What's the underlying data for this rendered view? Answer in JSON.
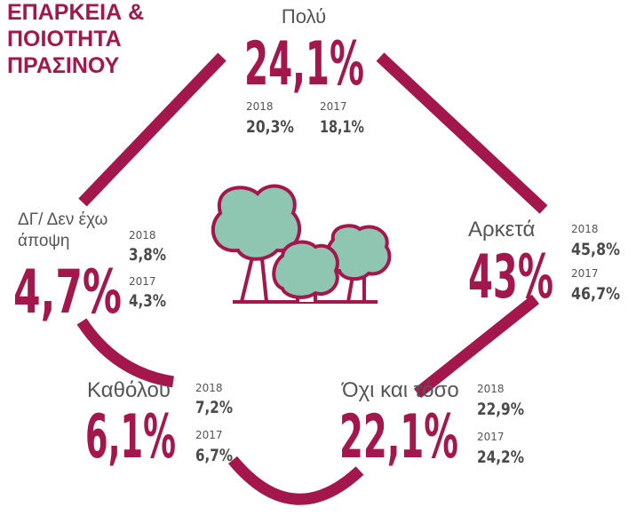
{
  "title": [
    "ΕΠΑΡΚΕΙΑ &",
    "ΠΟΙΟΤΗΤΑ",
    "ΠΡΑΣΙΝΟΥ"
  ],
  "items": [
    {
      "label": [
        "Πολύ"
      ],
      "value": "24,1%",
      "comparisons": [
        {
          "year": "2018",
          "value": "20,3%"
        },
        {
          "year": "2017",
          "value": "18,1%"
        }
      ]
    },
    {
      "label": [
        "Αρκετά"
      ],
      "value": "43%",
      "comparisons": [
        {
          "year": "2018",
          "value": "45,8%"
        },
        {
          "year": "2017",
          "value": "46,7%"
        }
      ]
    },
    {
      "label": [
        "Όχι και τόσο"
      ],
      "value": "22,1%",
      "comparisons": [
        {
          "year": "2018",
          "value": "22,9%"
        },
        {
          "year": "2017",
          "value": "24,2%"
        }
      ]
    },
    {
      "label": [
        "Καθόλου"
      ],
      "value": "6,1%",
      "comparisons": [
        {
          "year": "2018",
          "value": "7,2%"
        },
        {
          "year": "2017",
          "value": "6,7%"
        }
      ]
    },
    {
      "label": [
        "ΔΓ/ Δεν έχω",
        "άποψη"
      ],
      "value": "4,7%",
      "comparisons": [
        {
          "year": "2018",
          "value": "3,8%"
        },
        {
          "year": "2017",
          "value": "4,3%"
        }
      ]
    }
  ]
}
